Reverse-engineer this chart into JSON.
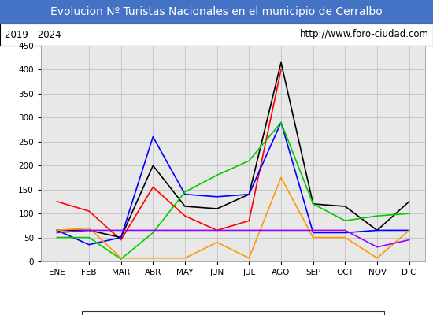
{
  "title": "Evolucion Nº Turistas Nacionales en el municipio de Cerralbo",
  "subtitle_left": "2019 - 2024",
  "subtitle_right": "http://www.foro-ciudad.com",
  "title_bg_color": "#4472c4",
  "title_text_color": "#ffffff",
  "subtitle_bg_color": "#ffffff",
  "subtitle_text_color": "#000000",
  "plot_bg_color": "#e8e8e8",
  "months": [
    "ENE",
    "FEB",
    "MAR",
    "ABR",
    "MAY",
    "JUN",
    "JUL",
    "AGO",
    "SEP",
    "OCT",
    "NOV",
    "DIC"
  ],
  "ylim": [
    0,
    450
  ],
  "yticks": [
    0,
    50,
    100,
    150,
    200,
    250,
    300,
    350,
    400,
    450
  ],
  "series": {
    "2024": {
      "color": "#ff0000",
      "data": [
        125,
        105,
        45,
        155,
        95,
        65,
        85,
        400,
        null,
        null,
        null,
        null
      ]
    },
    "2023": {
      "color": "#000000",
      "data": [
        65,
        65,
        50,
        200,
        115,
        110,
        140,
        415,
        120,
        115,
        65,
        125
      ]
    },
    "2022": {
      "color": "#0000ff",
      "data": [
        65,
        35,
        50,
        260,
        140,
        135,
        140,
        290,
        60,
        60,
        65,
        65
      ]
    },
    "2021": {
      "color": "#00cc00",
      "data": [
        50,
        50,
        5,
        60,
        145,
        180,
        210,
        290,
        120,
        85,
        95,
        100
      ]
    },
    "2020": {
      "color": "#ff9900",
      "data": [
        65,
        70,
        7,
        7,
        7,
        40,
        7,
        175,
        50,
        50,
        7,
        65
      ]
    },
    "2019": {
      "color": "#9900ff",
      "data": [
        60,
        65,
        65,
        65,
        65,
        65,
        65,
        65,
        65,
        65,
        30,
        45
      ]
    }
  }
}
